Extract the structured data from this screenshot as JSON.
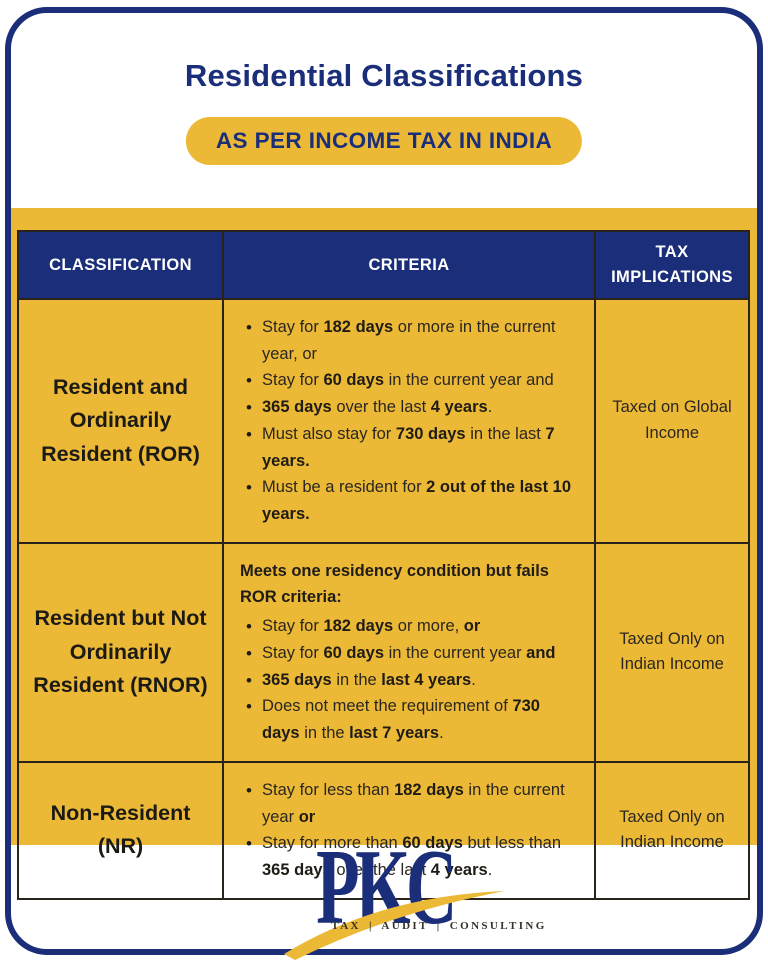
{
  "title": "Residential Classifications",
  "badge": "AS PER INCOME TAX IN INDIA",
  "colors": {
    "navy": "#1b2e79",
    "yellow": "#ecb937",
    "border_line": "#29241b",
    "body_text": "#2a2620"
  },
  "table": {
    "headers": [
      "CLASSIFICATION",
      "CRITERIA",
      "TAX IMPLICATIONS"
    ],
    "rows": [
      {
        "classification": "Resident and Ordinarily Resident (ROR)",
        "intro": "",
        "criteria": [
          "Stay for **182 days** or more in the current year, or",
          "Stay for **60 days** in the current year and",
          "**365 days** over the last **4 years**.",
          "Must also stay for **730 days** in the last **7 years.**",
          "Must be a resident for **2 out of the last 10 years.**"
        ],
        "tax": "Taxed on Global Income"
      },
      {
        "classification": "Resident but Not Ordinarily Resident (RNOR)",
        "intro": "**Meets one residency condition but fails ROR criteria:**",
        "criteria": [
          "Stay for **182 days** or more, **or**",
          "Stay for **60 days** in the current year **and**",
          "**365 days** in the **last 4 years**.",
          "Does not meet the requirement of **730 days** in the **last 7 years**."
        ],
        "tax": "Taxed Only on Indian Income"
      },
      {
        "classification": "Non-Resident (NR)",
        "intro": "",
        "criteria": [
          "Stay for less than **182 days** in the current year **or**",
          "Stay for more than **60 days** but less than **365 days** over the last **4 years**."
        ],
        "tax": "Taxed Only on Indian Income"
      }
    ]
  },
  "logo": {
    "name": "PKC",
    "tagline": "TAX | AUDIT | CONSULTING"
  }
}
